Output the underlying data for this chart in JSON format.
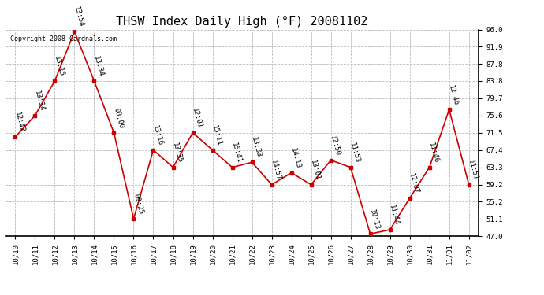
{
  "title": "THSW Index Daily High (°F) 20081102",
  "copyright": "Copyright 2008 Cardnals.com",
  "x_labels": [
    "10/10",
    "10/11",
    "10/12",
    "10/13",
    "10/14",
    "10/15",
    "10/16",
    "10/17",
    "10/18",
    "10/19",
    "10/20",
    "10/21",
    "10/22",
    "10/23",
    "10/24",
    "10/25",
    "10/26",
    "10/27",
    "10/28",
    "10/29",
    "10/30",
    "10/31",
    "11/01",
    "11/02"
  ],
  "y_values": [
    70.5,
    75.6,
    83.8,
    95.5,
    83.8,
    71.5,
    51.1,
    67.4,
    63.3,
    71.5,
    67.4,
    63.3,
    64.5,
    59.2,
    62.0,
    59.2,
    65.0,
    63.3,
    47.5,
    48.5,
    56.0,
    63.3,
    77.0,
    59.2
  ],
  "time_labels": [
    "12:42",
    "13:34",
    "13:15",
    "13:54",
    "13:34",
    "00:00",
    "09:25",
    "13:16",
    "13:35",
    "12:01",
    "15:11",
    "15:41",
    "13:33",
    "14:57",
    "14:13",
    "13:01",
    "12:50",
    "11:53",
    "10:13",
    "11:44",
    "12:07",
    "11:46",
    "12:46",
    "11:51"
  ],
  "line_color": "#cc0000",
  "marker_color": "#cc0000",
  "background_color": "#ffffff",
  "grid_color": "#bbbbbb",
  "ylim": [
    47.0,
    96.0
  ],
  "yticks": [
    47.0,
    51.1,
    55.2,
    59.2,
    63.3,
    67.4,
    71.5,
    75.6,
    79.7,
    83.8,
    87.8,
    91.9,
    96.0
  ],
  "title_fontsize": 11,
  "label_fontsize": 6.5,
  "tick_fontsize": 6.5,
  "copyright_fontsize": 6
}
